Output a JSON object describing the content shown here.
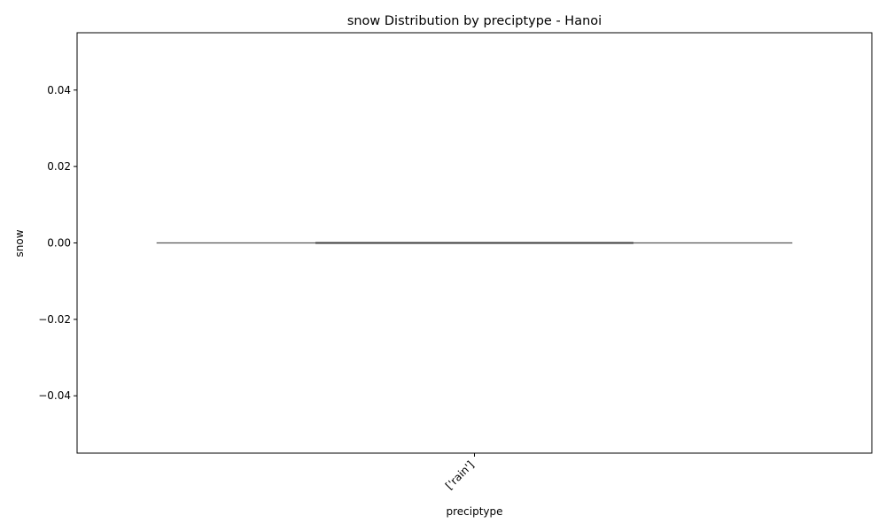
{
  "chart_data": {
    "type": "violin",
    "title": "snow Distribution by preciptype - Hanoi",
    "xlabel": "preciptype",
    "ylabel": "snow",
    "categories": [
      "['rain']"
    ],
    "series": [
      {
        "values": [
          0.0
        ],
        "min": 0.0,
        "q1": 0.0,
        "median": 0.0,
        "q3": 0.0,
        "max": 0.0
      }
    ],
    "ylim": [
      -0.055,
      0.055
    ],
    "yticks": [
      -0.04,
      -0.02,
      0.0,
      0.02,
      0.04
    ],
    "ytick_labels": [
      "−0.04",
      "−0.02",
      "0.00",
      "0.02",
      "0.04"
    ],
    "grid": false,
    "legend": "none",
    "colors": {
      "violin_edge": "#555555",
      "inner_box": "#3d3d3d",
      "axes": "#000000"
    }
  }
}
